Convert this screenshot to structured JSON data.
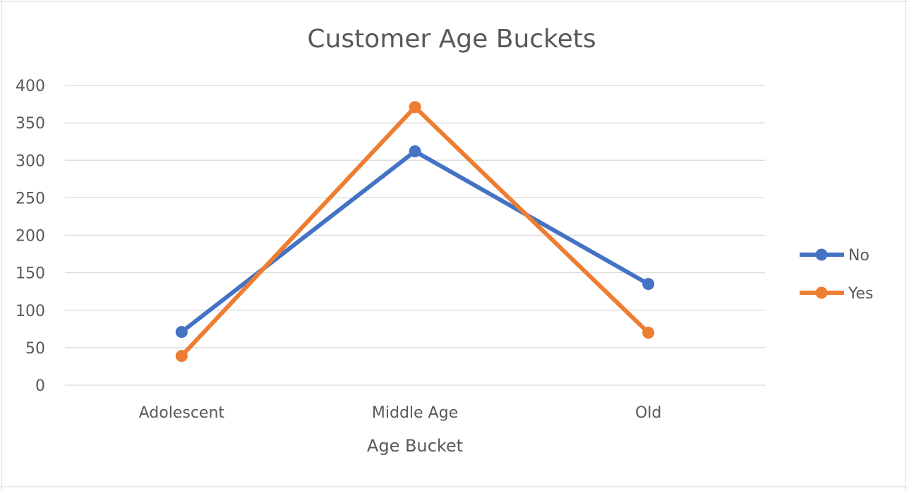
{
  "chart_data": {
    "type": "line",
    "title": "Customer Age Buckets",
    "xlabel": "Age Bucket",
    "ylabel": "",
    "categories": [
      "Adolescent",
      "Middle Age",
      "Old"
    ],
    "ylim": [
      0,
      400
    ],
    "yticks": [
      0,
      50,
      100,
      150,
      200,
      250,
      300,
      350,
      400
    ],
    "grid": true,
    "legend": "right",
    "series": [
      {
        "name": "No",
        "color": "#4472c4",
        "values": [
          71,
          312,
          135
        ]
      },
      {
        "name": "Yes",
        "color": "#ed7d31",
        "values": [
          39,
          371,
          70
        ]
      }
    ]
  }
}
